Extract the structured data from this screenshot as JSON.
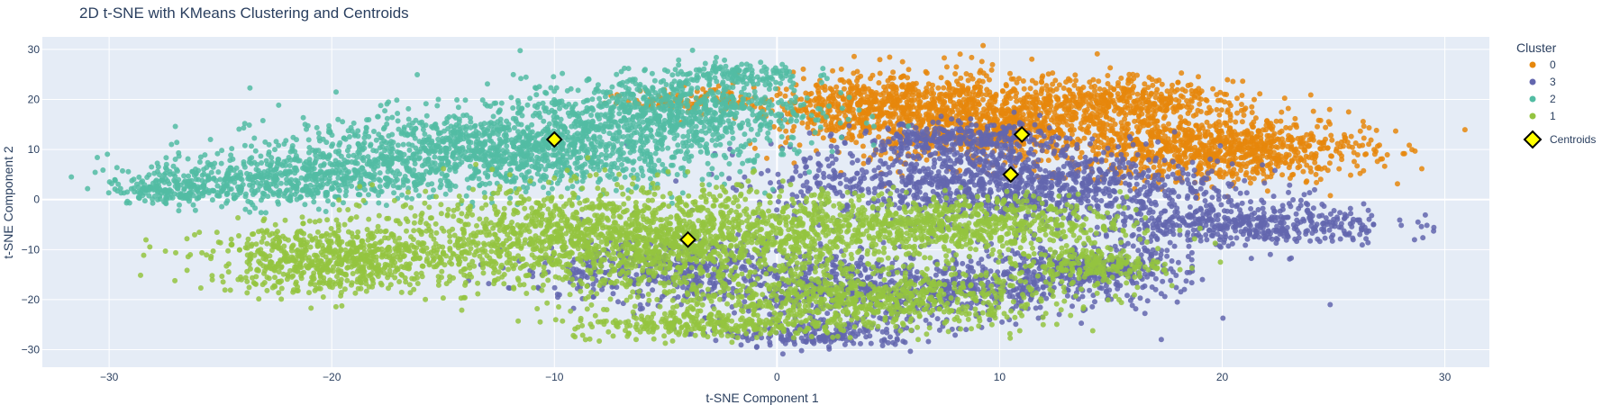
{
  "chart_data": {
    "type": "scatter",
    "title": "2D t-SNE with KMeans Clustering and Centroids",
    "xlabel": "t-SNE Component 1",
    "ylabel": "t-SNE Component 2",
    "xlim": [
      -33,
      32
    ],
    "ylim": [
      -33.5,
      32.5
    ],
    "xticks": [
      -30,
      -20,
      -10,
      0,
      10,
      20,
      30
    ],
    "yticks": [
      -30,
      -20,
      -10,
      0,
      10,
      20,
      30
    ],
    "xtick_labels": [
      "−30",
      "−20",
      "−10",
      "0",
      "10",
      "20",
      "30"
    ],
    "ytick_labels": [
      "−30",
      "−20",
      "−10",
      "0",
      "10",
      "20",
      "30"
    ],
    "grid": true,
    "legend": {
      "title": "Cluster",
      "position": "right",
      "entries": [
        "0",
        "3",
        "2",
        "1",
        "Centroids"
      ]
    },
    "series": [
      {
        "name": "0",
        "color": "#e6870c",
        "regions": [
          {
            "cx": 10,
            "cy": 16,
            "rx": 8,
            "ry": 8,
            "n": 1300
          },
          {
            "cx": 20,
            "cy": 10,
            "rx": 6,
            "ry": 6,
            "n": 900
          },
          {
            "cx": 4,
            "cy": 19,
            "rx": 5,
            "ry": 5,
            "n": 400
          },
          {
            "cx": 16,
            "cy": 20,
            "rx": 4,
            "ry": 3,
            "n": 220
          },
          {
            "cx": -4,
            "cy": 20,
            "rx": 2.5,
            "ry": 2,
            "n": 100
          }
        ]
      },
      {
        "name": "3",
        "color": "#6366ae",
        "regions": [
          {
            "cx": 10,
            "cy": 3,
            "rx": 9,
            "ry": 7,
            "n": 1200
          },
          {
            "cx": 21,
            "cy": -5,
            "rx": 6,
            "ry": 4,
            "n": 500
          },
          {
            "cx": 6,
            "cy": -18,
            "rx": 8,
            "ry": 6,
            "n": 700
          },
          {
            "cx": -4,
            "cy": -14,
            "rx": 7,
            "ry": 6,
            "n": 500
          },
          {
            "cx": 14,
            "cy": -14,
            "rx": 4,
            "ry": 4,
            "n": 350
          },
          {
            "cx": 2,
            "cy": -27,
            "rx": 4,
            "ry": 2.5,
            "n": 200
          },
          {
            "cx": 8,
            "cy": 12,
            "rx": 4,
            "ry": 3,
            "n": 300
          }
        ]
      },
      {
        "name": "2",
        "color": "#52bca3",
        "regions": [
          {
            "cx": -12,
            "cy": 10,
            "rx": 9,
            "ry": 7,
            "n": 1400
          },
          {
            "cx": -22,
            "cy": 4,
            "rx": 6,
            "ry": 5,
            "n": 600
          },
          {
            "cx": -5,
            "cy": 18,
            "rx": 6,
            "ry": 6,
            "n": 700
          },
          {
            "cx": -27,
            "cy": 2,
            "rx": 2.5,
            "ry": 2.5,
            "n": 150
          },
          {
            "cx": -2,
            "cy": 25,
            "rx": 3,
            "ry": 2.5,
            "n": 150
          }
        ]
      },
      {
        "name": "1",
        "color": "#94c440",
        "regions": [
          {
            "cx": -6,
            "cy": -8,
            "rx": 11,
            "ry": 9,
            "n": 2100
          },
          {
            "cx": -20,
            "cy": -12,
            "rx": 5,
            "ry": 6,
            "n": 700
          },
          {
            "cx": 4,
            "cy": -20,
            "rx": 8,
            "ry": 5,
            "n": 700
          },
          {
            "cx": 8,
            "cy": -5,
            "rx": 7,
            "ry": 5,
            "n": 700
          },
          {
            "cx": -3,
            "cy": -25,
            "rx": 6,
            "ry": 2.5,
            "n": 300
          },
          {
            "cx": 14,
            "cy": -13,
            "rx": 3,
            "ry": 3,
            "n": 220
          }
        ]
      }
    ],
    "centroids": {
      "name": "Centroids",
      "fill": "#ffff00",
      "outline": "#000000",
      "points": [
        {
          "cluster": "0",
          "x": 11,
          "y": 13
        },
        {
          "cluster": "3",
          "x": 10.5,
          "y": 5
        },
        {
          "cluster": "2",
          "x": -10,
          "y": 12
        },
        {
          "cluster": "1",
          "x": -4,
          "y": -8
        }
      ]
    }
  }
}
